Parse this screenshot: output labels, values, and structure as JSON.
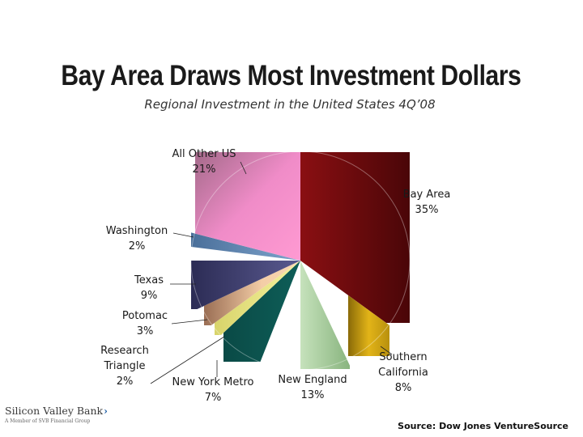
{
  "chart_data": {
    "type": "pie",
    "title": "Bay Area Draws Most Investment Dollars",
    "subtitle": "Regional Investment in the United States 4Q’08",
    "slices": [
      {
        "name": "Bay Area",
        "label": "Bay Area",
        "pct_label": "35%",
        "value": 35,
        "color": "#7a0f12"
      },
      {
        "name": "Southern California",
        "label": "Southern California",
        "pct_label": "8%",
        "value": 8,
        "color": "#c9a012"
      },
      {
        "name": "New England",
        "label": "New England",
        "pct_label": "13%",
        "value": 13,
        "color": "#a9cfa0"
      },
      {
        "name": "New York Metro",
        "label": "New York Metro",
        "pct_label": "7%",
        "value": 7,
        "color": "#0c5450"
      },
      {
        "name": "Research Triangle",
        "label": "Research Triangle",
        "pct_label": "2%",
        "value": 2,
        "color": "#ece889"
      },
      {
        "name": "Potomac",
        "label": "Potomac",
        "pct_label": "3%",
        "value": 3,
        "color": "#f2c9a0"
      },
      {
        "name": "Texas",
        "label": "Texas",
        "pct_label": "9%",
        "value": 9,
        "color": "#3f3f73"
      },
      {
        "name": "Washington",
        "label": "Washington",
        "pct_label": "2%",
        "value": 2,
        "color": "#5f86b3"
      },
      {
        "name": "All Other US",
        "label": "All Other US",
        "pct_label": "21%",
        "value": 21,
        "color": "#ee88c4"
      }
    ]
  },
  "footer": {
    "logo_name": "Silicon Valley Bank",
    "logo_sub": "A Member of SVB Financial Group",
    "source": "Source: Dow Jones VentureSource"
  }
}
